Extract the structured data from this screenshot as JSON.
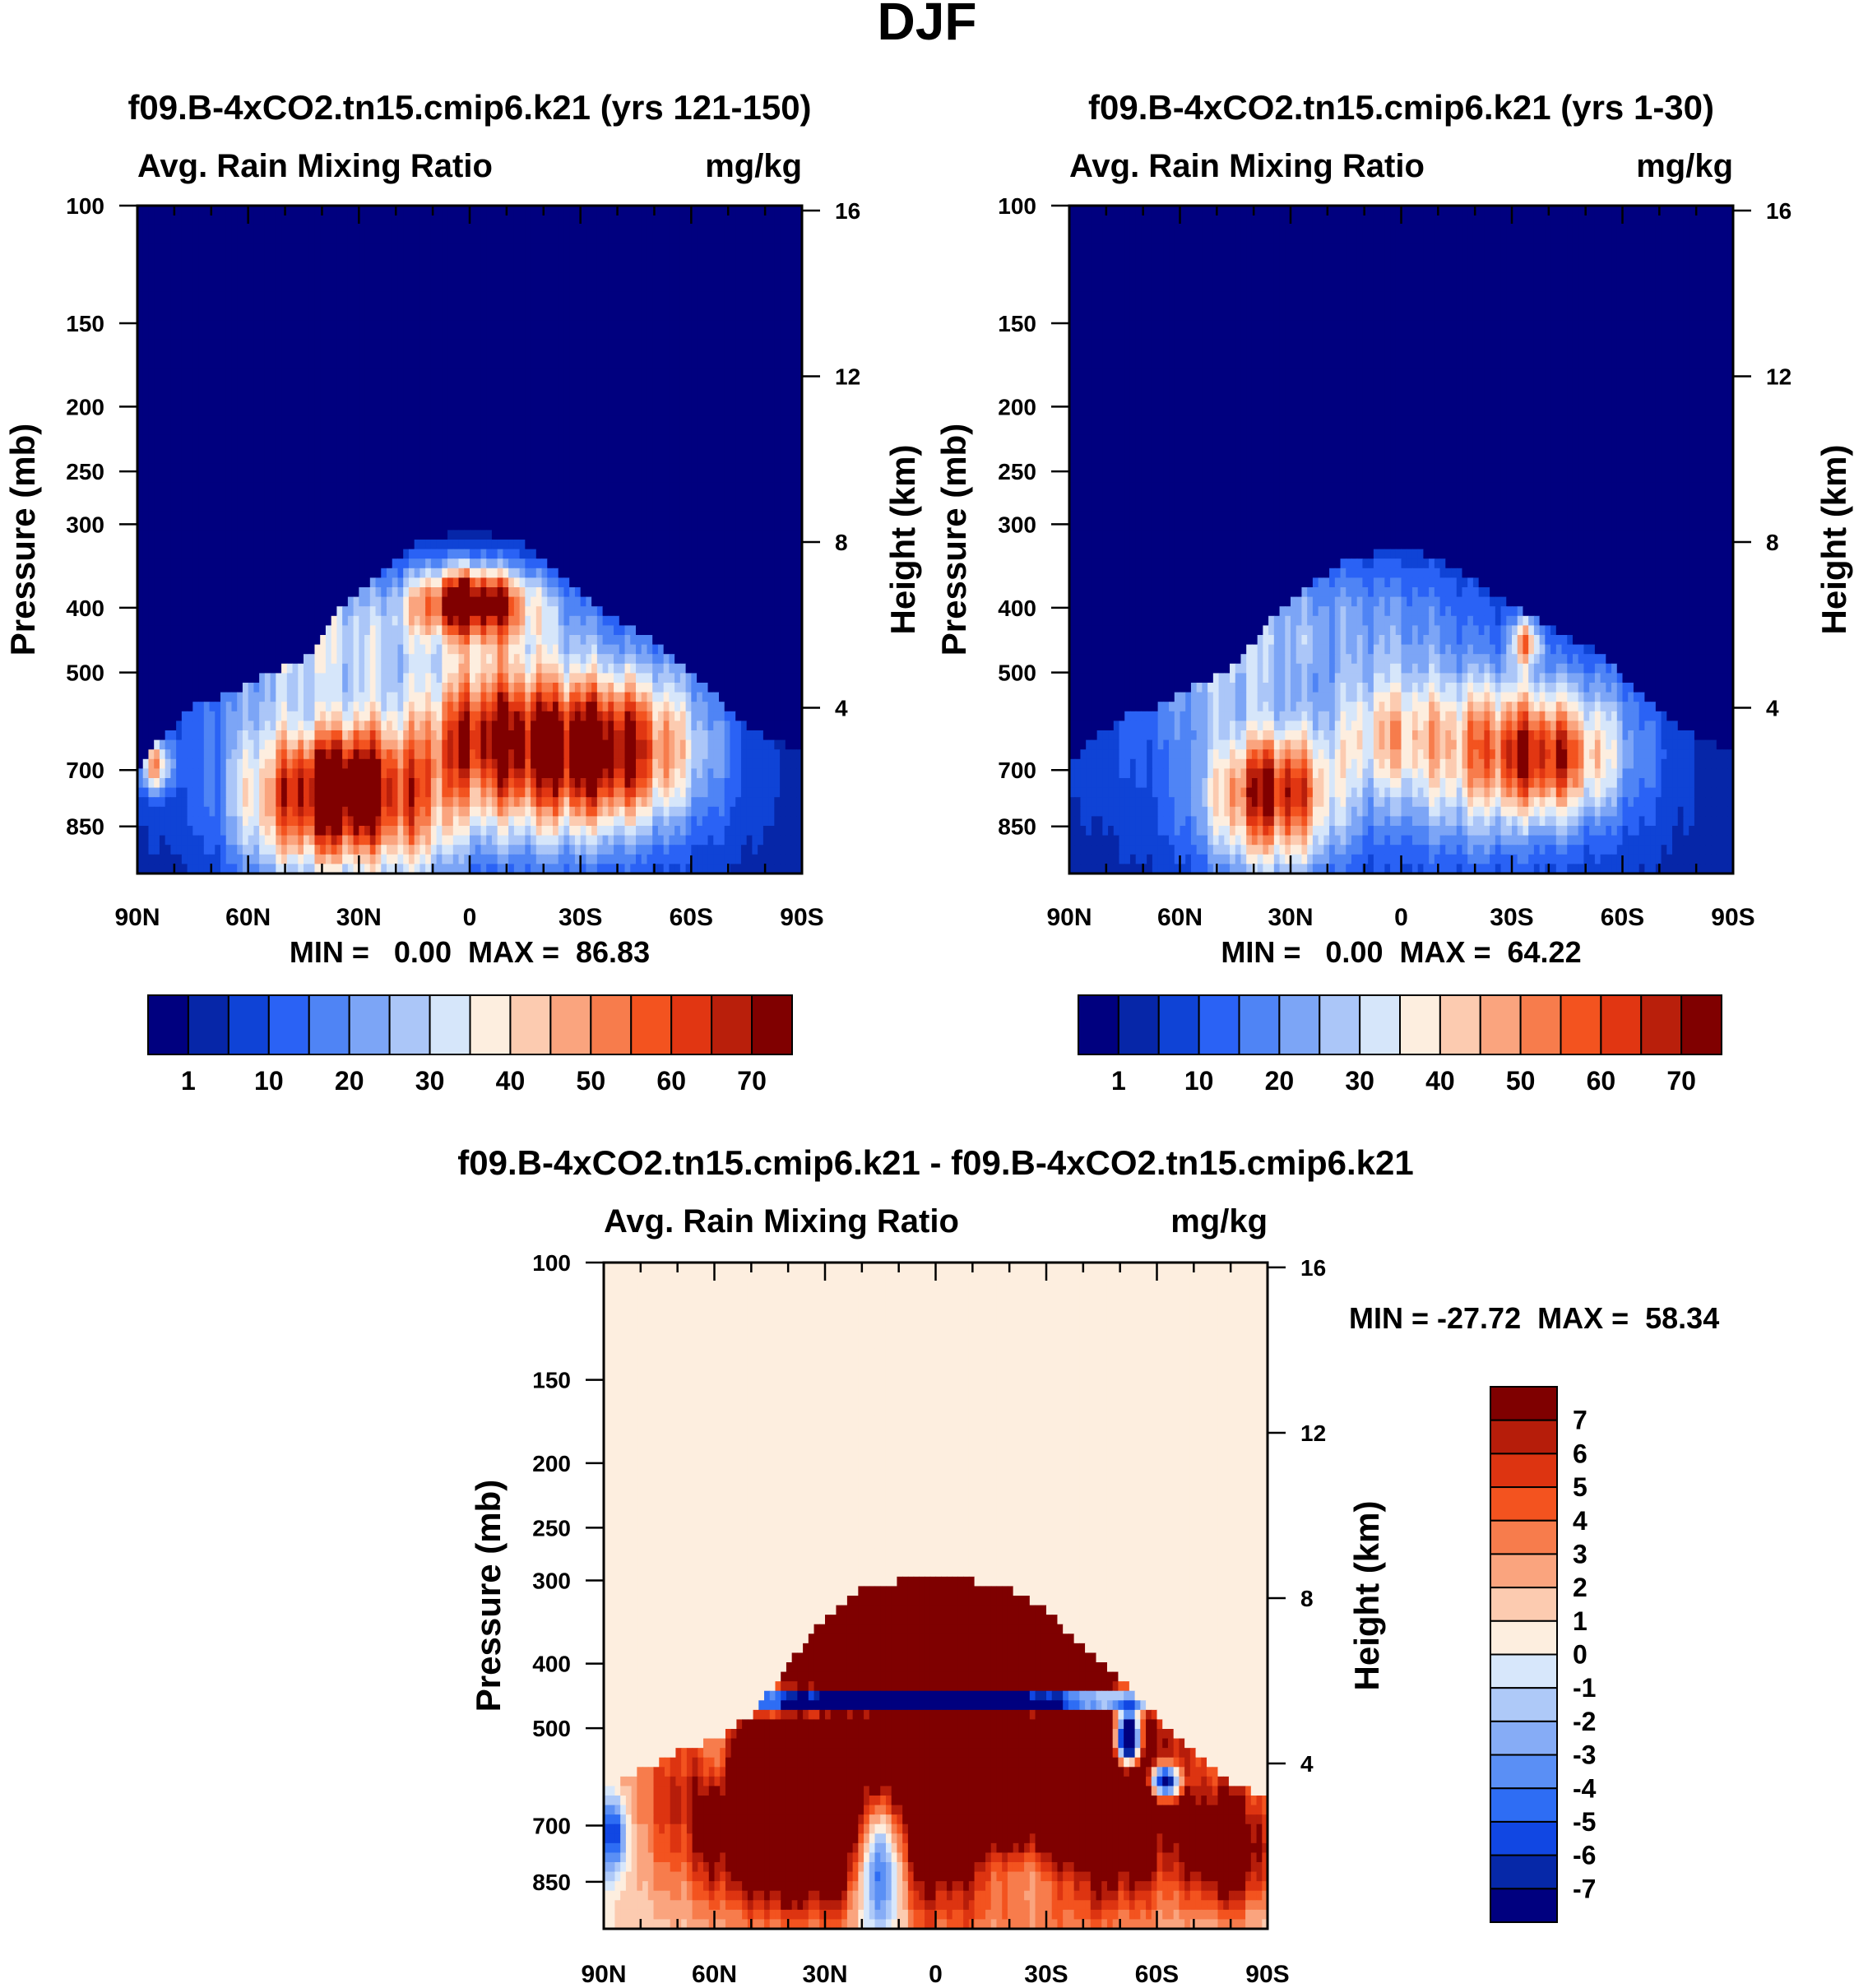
{
  "page_title": "DJF",
  "colors": {
    "abs_scale": [
      "#00007f",
      "#0626a8",
      "#0f43d6",
      "#2a62f5",
      "#4f84f5",
      "#7ca5f6",
      "#abc6f8",
      "#d6e6fa",
      "#fdeedf",
      "#fccbb0",
      "#faa47e",
      "#f77c4c",
      "#f3531f",
      "#e13612",
      "#b91f0b",
      "#800000"
    ],
    "diff_scale": [
      "#00007f",
      "#0628a8",
      "#1147e3",
      "#2e6df4",
      "#5a8ff5",
      "#86acf6",
      "#aec9f8",
      "#d7e7fb",
      "#fdeedf",
      "#fccbb0",
      "#faa47e",
      "#f77c4c",
      "#f3531f",
      "#dd3411",
      "#b61d0a",
      "#7f0000"
    ]
  },
  "chart_data": [
    {
      "id": "panel-1",
      "type": "heatmap",
      "title": "f09.B-4xCO2.tn15.cmip6.k21 (yrs 121-150)",
      "variable_label": "Avg. Rain Mixing Ratio",
      "units_label": "mg/kg",
      "ylabel": "Pressure (mb)",
      "y2label": "Height (km)",
      "x_ticks": [
        "90N",
        "60N",
        "30N",
        "0",
        "30S",
        "60S",
        "90S"
      ],
      "xlim": [
        90,
        -90
      ],
      "y_ticks": [
        100,
        150,
        200,
        250,
        300,
        400,
        500,
        700,
        850
      ],
      "ylim": [
        100,
        1000
      ],
      "y_scale": "log",
      "y2_ticks": [
        16,
        12,
        8,
        4
      ],
      "stats": "MIN =   0.00  MAX =  86.83",
      "colorbar": {
        "orientation": "horizontal",
        "tick_labels": [
          "1",
          "10",
          "20",
          "30",
          "40",
          "50",
          "60",
          "70"
        ],
        "levels": [
          1,
          5,
          10,
          15,
          20,
          25,
          30,
          35,
          40,
          45,
          50,
          55,
          60,
          65,
          70
        ]
      },
      "field": {
        "background": 0,
        "blobs": [
          {
            "lat": 64,
            "p": 540,
            "w": 26,
            "h": 0.34,
            "a": 10
          },
          {
            "lat": 35,
            "p": 800,
            "w": 14,
            "h": 0.18,
            "a": 50
          },
          {
            "lat": 35,
            "p": 720,
            "w": 9,
            "h": 0.12,
            "a": 30
          },
          {
            "lat": 55,
            "p": 760,
            "w": 9,
            "h": 0.22,
            "a": 18
          },
          {
            "lat": 45,
            "p": 420,
            "w": 12,
            "h": 0.18,
            "a": 22
          },
          {
            "lat": 25,
            "p": 600,
            "w": 10,
            "h": 0.28,
            "a": 12
          },
          {
            "lat": 0,
            "p": 390,
            "w": 10,
            "h": 0.08,
            "a": 55
          },
          {
            "lat": -4,
            "p": 400,
            "w": 18,
            "h": 0.12,
            "a": 25
          },
          {
            "lat": 12,
            "p": 820,
            "w": 8,
            "h": 0.2,
            "a": 18
          },
          {
            "lat": -2,
            "p": 610,
            "w": 11,
            "h": 0.16,
            "a": 38
          },
          {
            "lat": -25,
            "p": 620,
            "w": 18,
            "h": 0.18,
            "a": 45
          },
          {
            "lat": -38,
            "p": 660,
            "w": 13,
            "h": 0.16,
            "a": 28
          },
          {
            "lat": -20,
            "p": 790,
            "w": 20,
            "h": 0.17,
            "a": 18
          },
          {
            "lat": -55,
            "p": 620,
            "w": 13,
            "h": 0.24,
            "a": 16
          },
          {
            "lat": -5,
            "p": 800,
            "w": 60,
            "h": 0.3,
            "a": 8
          },
          {
            "lat": 85,
            "p": 690,
            "w": 3,
            "h": 0.06,
            "a": 38
          },
          {
            "lat": 0,
            "p": 460,
            "w": 35,
            "h": 0.15,
            "a": 10
          }
        ],
        "envelope": [
          [
            90,
            700
          ],
          [
            85,
            640
          ],
          [
            75,
            560
          ],
          [
            65,
            540
          ],
          [
            55,
            500
          ],
          [
            45,
            480
          ],
          [
            35,
            400
          ],
          [
            25,
            360
          ],
          [
            15,
            320
          ],
          [
            5,
            310
          ],
          [
            -5,
            310
          ],
          [
            -15,
            320
          ],
          [
            -25,
            360
          ],
          [
            -35,
            400
          ],
          [
            -45,
            430
          ],
          [
            -55,
            470
          ],
          [
            -65,
            530
          ],
          [
            -75,
            600
          ],
          [
            -85,
            640
          ],
          [
            -90,
            660
          ]
        ]
      }
    },
    {
      "id": "panel-2",
      "type": "heatmap",
      "title": "f09.B-4xCO2.tn15.cmip6.k21 (yrs 1-30)",
      "variable_label": "Avg. Rain Mixing Ratio",
      "units_label": "mg/kg",
      "ylabel": "Pressure (mb)",
      "y2label": "Height (km)",
      "x_ticks": [
        "90N",
        "60N",
        "30N",
        "0",
        "30S",
        "60S",
        "90S"
      ],
      "xlim": [
        90,
        -90
      ],
      "y_ticks": [
        100,
        150,
        200,
        250,
        300,
        400,
        500,
        700,
        850
      ],
      "ylim": [
        100,
        1000
      ],
      "y_scale": "log",
      "y2_ticks": [
        16,
        12,
        8,
        4
      ],
      "stats": "MIN =   0.00  MAX =  64.22",
      "colorbar": {
        "orientation": "horizontal",
        "tick_labels": [
          "1",
          "10",
          "20",
          "30",
          "40",
          "50",
          "60",
          "70"
        ],
        "levels": [
          1,
          5,
          10,
          15,
          20,
          25,
          30,
          35,
          40,
          45,
          50,
          55,
          60,
          65,
          70
        ]
      },
      "field": {
        "background": 0,
        "blobs": [
          {
            "lat": 64,
            "p": 560,
            "w": 24,
            "h": 0.32,
            "a": 8
          },
          {
            "lat": 35,
            "p": 800,
            "w": 13,
            "h": 0.18,
            "a": 45
          },
          {
            "lat": 35,
            "p": 720,
            "w": 9,
            "h": 0.12,
            "a": 22
          },
          {
            "lat": 50,
            "p": 450,
            "w": 15,
            "h": 0.2,
            "a": 18
          },
          {
            "lat": 10,
            "p": 430,
            "w": 28,
            "h": 0.2,
            "a": 20
          },
          {
            "lat": 5,
            "p": 620,
            "w": 10,
            "h": 0.14,
            "a": 25
          },
          {
            "lat": -25,
            "p": 620,
            "w": 17,
            "h": 0.16,
            "a": 36
          },
          {
            "lat": -40,
            "p": 680,
            "w": 11,
            "h": 0.13,
            "a": 30
          },
          {
            "lat": -34,
            "p": 450,
            "w": 3,
            "h": 0.06,
            "a": 35
          },
          {
            "lat": -20,
            "p": 800,
            "w": 18,
            "h": 0.16,
            "a": 14
          },
          {
            "lat": -55,
            "p": 620,
            "w": 13,
            "h": 0.24,
            "a": 14
          },
          {
            "lat": -5,
            "p": 800,
            "w": 60,
            "h": 0.3,
            "a": 7
          }
        ],
        "envelope": [
          [
            90,
            690
          ],
          [
            85,
            640
          ],
          [
            75,
            580
          ],
          [
            65,
            560
          ],
          [
            55,
            520
          ],
          [
            45,
            490
          ],
          [
            35,
            410
          ],
          [
            25,
            370
          ],
          [
            15,
            340
          ],
          [
            5,
            330
          ],
          [
            -5,
            330
          ],
          [
            -15,
            350
          ],
          [
            -25,
            380
          ],
          [
            -35,
            410
          ],
          [
            -45,
            440
          ],
          [
            -55,
            470
          ],
          [
            -65,
            540
          ],
          [
            -75,
            600
          ],
          [
            -85,
            640
          ],
          [
            -90,
            660
          ]
        ]
      }
    },
    {
      "id": "panel-3",
      "type": "heatmap",
      "title": "f09.B-4xCO2.tn15.cmip6.k21 - f09.B-4xCO2.tn15.cmip6.k21",
      "variable_label": "Avg. Rain Mixing Ratio",
      "units_label": "mg/kg",
      "ylabel": "Pressure (mb)",
      "y2label": "Height (km)",
      "x_ticks": [
        "90N",
        "60N",
        "30N",
        "0",
        "30S",
        "60S",
        "90S"
      ],
      "xlim": [
        90,
        -90
      ],
      "y_ticks": [
        100,
        150,
        200,
        250,
        300,
        400,
        500,
        700,
        850
      ],
      "ylim": [
        100,
        1000
      ],
      "y_scale": "log",
      "y2_ticks": [
        16,
        12,
        8,
        4
      ],
      "stats": "MIN = -27.72  MAX =  58.34",
      "colorbar": {
        "orientation": "vertical",
        "tick_labels": [
          "7",
          "6",
          "5",
          "4",
          "3",
          "2",
          "1",
          "0",
          "-1",
          "-2",
          "-3",
          "-4",
          "-5",
          "-6",
          "-7"
        ],
        "levels": [
          -7,
          -6,
          -5,
          -4,
          -3,
          -2,
          -1,
          0,
          1,
          2,
          3,
          4,
          5,
          6,
          7
        ]
      },
      "field": {
        "background": 0.5,
        "blobs": [
          {
            "lat": 0,
            "p": 360,
            "w": 22,
            "h": 0.16,
            "a": 30
          },
          {
            "lat": 0,
            "p": 620,
            "w": 40,
            "h": 0.3,
            "a": 14
          },
          {
            "lat": 40,
            "p": 680,
            "w": 12,
            "h": 0.18,
            "a": 8
          },
          {
            "lat": -45,
            "p": 620,
            "w": 14,
            "h": 0.25,
            "a": 9
          },
          {
            "lat": 60,
            "p": 650,
            "w": 14,
            "h": 0.25,
            "a": 3
          },
          {
            "lat": 0,
            "p": 455,
            "w": 32,
            "h": 0.025,
            "a": -40
          },
          {
            "lat": 15,
            "p": 760,
            "w": 5,
            "h": 0.2,
            "a": -14
          },
          {
            "lat": -25,
            "p": 800,
            "w": 12,
            "h": 0.12,
            "a": -6
          },
          {
            "lat": -52,
            "p": 520,
            "w": 2.5,
            "h": 0.07,
            "a": -25
          },
          {
            "lat": -62,
            "p": 600,
            "w": 3,
            "h": 0.04,
            "a": -18
          },
          {
            "lat": 88,
            "p": 720,
            "w": 3,
            "h": 0.1,
            "a": -8
          },
          {
            "lat": 60,
            "p": 560,
            "w": 3,
            "h": 0.1,
            "a": -5
          },
          {
            "lat": -80,
            "p": 760,
            "w": 8,
            "h": 0.15,
            "a": 9
          }
        ],
        "envelope": [
          [
            90,
            620
          ],
          [
            80,
            580
          ],
          [
            70,
            540
          ],
          [
            60,
            520
          ],
          [
            50,
            480
          ],
          [
            40,
            400
          ],
          [
            30,
            340
          ],
          [
            20,
            310
          ],
          [
            10,
            300
          ],
          [
            0,
            300
          ],
          [
            -10,
            300
          ],
          [
            -20,
            310
          ],
          [
            -30,
            330
          ],
          [
            -40,
            380
          ],
          [
            -50,
            420
          ],
          [
            -60,
            480
          ],
          [
            -70,
            540
          ],
          [
            -80,
            600
          ],
          [
            -90,
            640
          ]
        ]
      }
    }
  ]
}
